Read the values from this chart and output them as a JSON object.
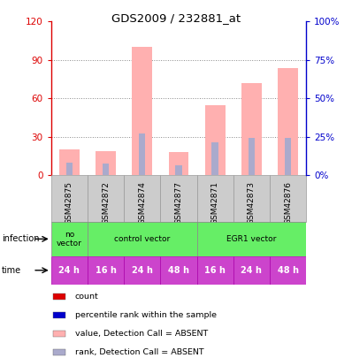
{
  "title": "GDS2009 / 232881_at",
  "samples": [
    "GSM42875",
    "GSM42872",
    "GSM42874",
    "GSM42877",
    "GSM42871",
    "GSM42873",
    "GSM42876"
  ],
  "pink_bar_values": [
    20,
    19,
    100,
    18,
    55,
    72,
    84
  ],
  "blue_bar_values": [
    10,
    9,
    33,
    8,
    26,
    29,
    29
  ],
  "pink_color": "#FFB0B0",
  "blue_color": "#AAAACC",
  "red_color": "#DD0000",
  "dark_blue_color": "#0000CC",
  "left_ylim": [
    0,
    120
  ],
  "left_yticks": [
    0,
    30,
    60,
    90,
    120
  ],
  "right_ylim": [
    0,
    100
  ],
  "right_yticks": [
    0,
    25,
    50,
    75,
    100
  ],
  "right_tick_labels": [
    "0%",
    "25%",
    "50%",
    "75%",
    "100%"
  ],
  "time_labels": [
    "24 h",
    "16 h",
    "24 h",
    "48 h",
    "16 h",
    "24 h",
    "48 h"
  ],
  "time_color": "#CC44CC",
  "green_color": "#66EE66",
  "gray_color": "#CCCCCC",
  "legend_items": [
    {
      "label": "count",
      "color": "#DD0000"
    },
    {
      "label": "percentile rank within the sample",
      "color": "#0000CC"
    },
    {
      "label": "value, Detection Call = ABSENT",
      "color": "#FFB0B0"
    },
    {
      "label": "rank, Detection Call = ABSENT",
      "color": "#AAAACC"
    }
  ]
}
